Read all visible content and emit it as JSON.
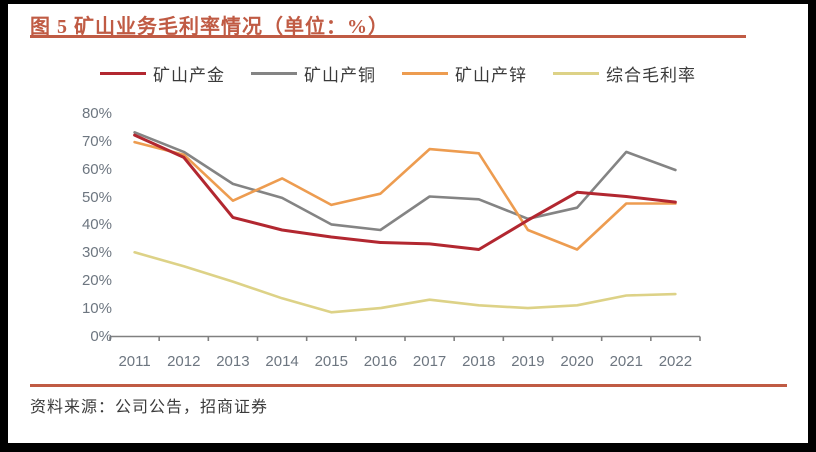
{
  "title": "图 5 矿山业务毛利率情况（单位：%）",
  "footer": {
    "source_label": "资料来源：公司公告，招商证券"
  },
  "colors": {
    "accent_rule": "#C05B44",
    "axis_label": "#6D7680",
    "axis_line": "#808080",
    "legend_text": "#3A3A3A"
  },
  "chart_data": {
    "type": "line",
    "categories": [
      "2011",
      "2012",
      "2013",
      "2014",
      "2015",
      "2016",
      "2017",
      "2018",
      "2019",
      "2020",
      "2021",
      "2022"
    ],
    "series": [
      {
        "name": "矿山产金",
        "color": "#B22730",
        "values": [
          72,
          64,
          42.5,
          38,
          35.5,
          33.5,
          33,
          31,
          41.5,
          51.5,
          50,
          48
        ]
      },
      {
        "name": "矿山产铜",
        "color": "#848484",
        "values": [
          73,
          66,
          54.5,
          49.5,
          40,
          38,
          50,
          49,
          42,
          46,
          66,
          59.5
        ]
      },
      {
        "name": "矿山产锌",
        "color": "#ED9C50",
        "values": [
          69.5,
          65,
          48.5,
          56.5,
          47,
          51,
          67,
          65.5,
          38,
          31,
          47.5,
          47.5
        ]
      },
      {
        "name": "综合毛利率",
        "color": "#DDD287",
        "values": [
          30,
          25,
          19.5,
          13.5,
          8.5,
          10,
          13,
          11,
          10,
          11,
          14.5,
          15
        ]
      }
    ],
    "ylim": [
      0,
      80
    ],
    "ytick_step": 10,
    "ytick_labels": [
      "0%",
      "10%",
      "20%",
      "30%",
      "40%",
      "50%",
      "60%",
      "70%",
      "80%"
    ],
    "grid": false,
    "legend_position": "top"
  }
}
